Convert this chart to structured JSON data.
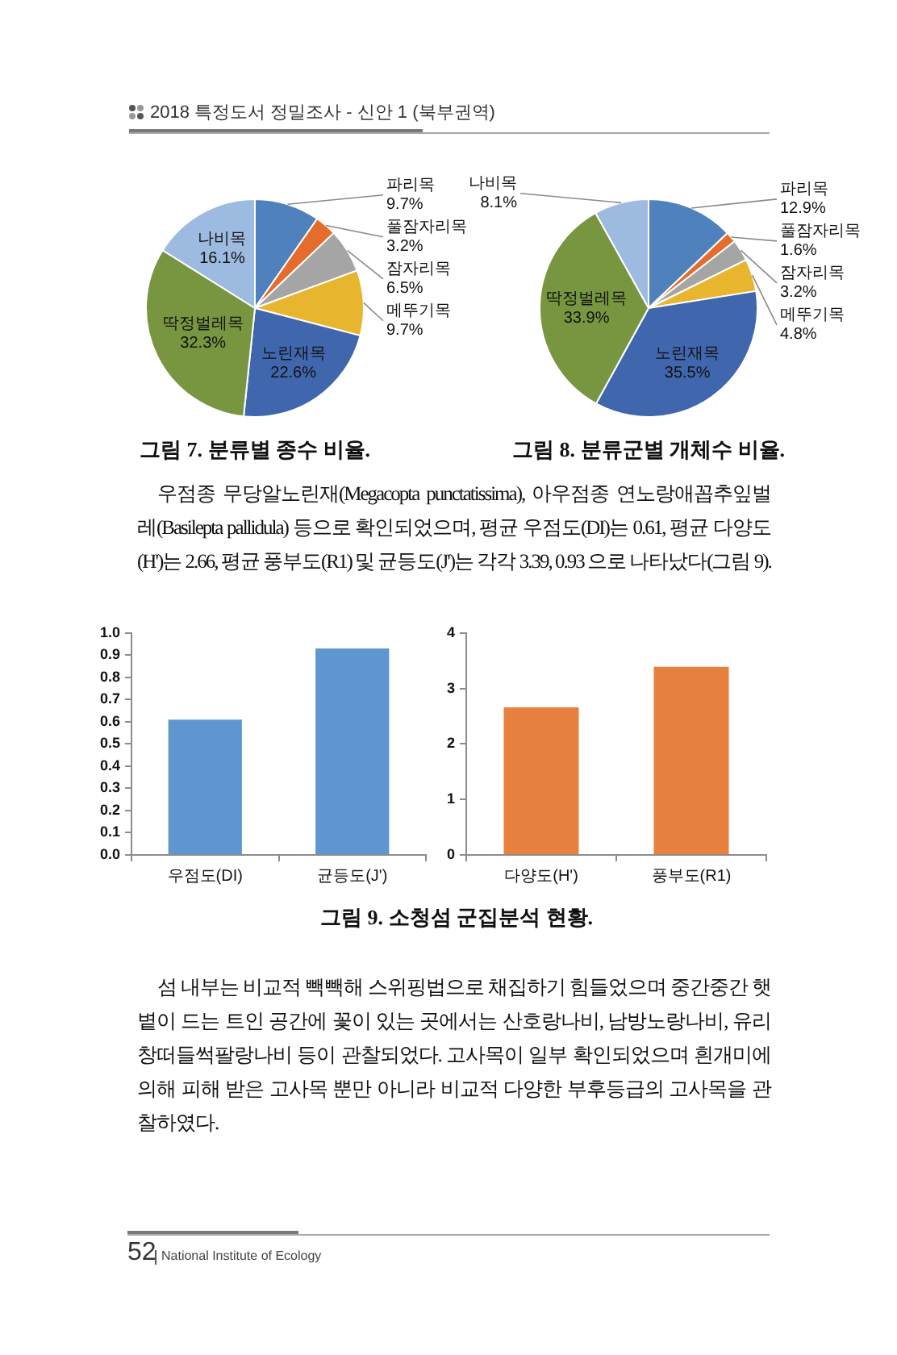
{
  "chart_data": [
    {
      "type": "pie",
      "title": "그림 7. 분류별 종수 비율.",
      "annotations": [
        "2018 특정도서 정밀조사 - 신안 1 (북부권역)"
      ],
      "categories": [
        "파리목",
        "풀잠자리목",
        "잠자리목",
        "메뚜기목",
        "노린재목",
        "딱정벌레목",
        "나비목"
      ],
      "values": [
        9.7,
        3.2,
        6.5,
        9.7,
        22.6,
        32.3,
        16.1
      ],
      "value_labels": [
        "9.7%",
        "3.2%",
        "6.5%",
        "9.7%",
        "22.6%",
        "32.3%",
        "16.1%"
      ],
      "colors": [
        "#4f81bd",
        "#e46c2c",
        "#a5a5a5",
        "#e8b52e",
        "#4067ae",
        "#77963f",
        "#9dbbe0"
      ]
    },
    {
      "type": "pie",
      "title": "그림 8. 분류군별 개체수 비율.",
      "categories": [
        "파리목",
        "풀잠자리목",
        "잠자리목",
        "메뚜기목",
        "노린재목",
        "딱정벌레목",
        "나비목"
      ],
      "values": [
        12.9,
        1.6,
        3.2,
        4.8,
        35.5,
        33.9,
        8.1
      ],
      "value_labels": [
        "12.9%",
        "1.6%",
        "3.2%",
        "4.8%",
        "35.5%",
        "33.9%",
        "8.1%"
      ],
      "colors": [
        "#4f81bd",
        "#e46c2c",
        "#a5a5a5",
        "#e8b52e",
        "#4067ae",
        "#77963f",
        "#9dbbe0"
      ]
    },
    {
      "type": "bar",
      "title": "그림 9. 소청섬 군집분석 현황.",
      "annotations": [
        "우점종 무당알노린재(Megacopta punctatissima), 아우점종 연노랑애꼽추잎벌레(Basilepta pallidula) 등으로 확인되었으며, 평균 우점도(DI)는 0.61, 평균 다양도(H')는 2.66, 평균 풍부도(R1) 및 균등도(J')는 각각 3.39, 0.93 으로 나타났다(그림 9)."
      ],
      "categories": [
        "우점도(DI)",
        "균등도(J')"
      ],
      "values": [
        0.61,
        0.93
      ],
      "color": "#5f96cf",
      "ylim": [
        0,
        1
      ],
      "yticks": [
        {
          "value": 0,
          "label": "0.0"
        },
        0.1,
        0.2,
        0.3,
        0.4,
        0.5,
        0.6,
        0.7,
        0.8,
        0.9,
        {
          "value": 1,
          "label": "1.0"
        }
      ]
    },
    {
      "type": "bar",
      "annotations": [
        "섬 내부는 비교적 빽빽해 스위핑법으로 채집하기 힘들었으며 중간중간 햇볕이 드는 트인 공간에 꽃이 있는 곳에서는 산호랑나비, 남방노랑나비, 유리창떠들썩팔랑나비 등이 관찰되었다. 고사목이 일부 확인되었으며 흰개미에 의해 피해 받은 고사목 뿐만 아니라 비교적 다양한 부후등급의 고사목을 관찰하였다.",
        "52",
        "National Institute of Ecology"
      ],
      "categories": [
        "다양도(H')",
        "풍부도(R1)"
      ],
      "values": [
        2.66,
        3.39
      ],
      "color": "#e8803f",
      "ylim": [
        0,
        4
      ],
      "yticks": [
        0,
        1,
        2,
        3,
        4
      ]
    }
  ]
}
